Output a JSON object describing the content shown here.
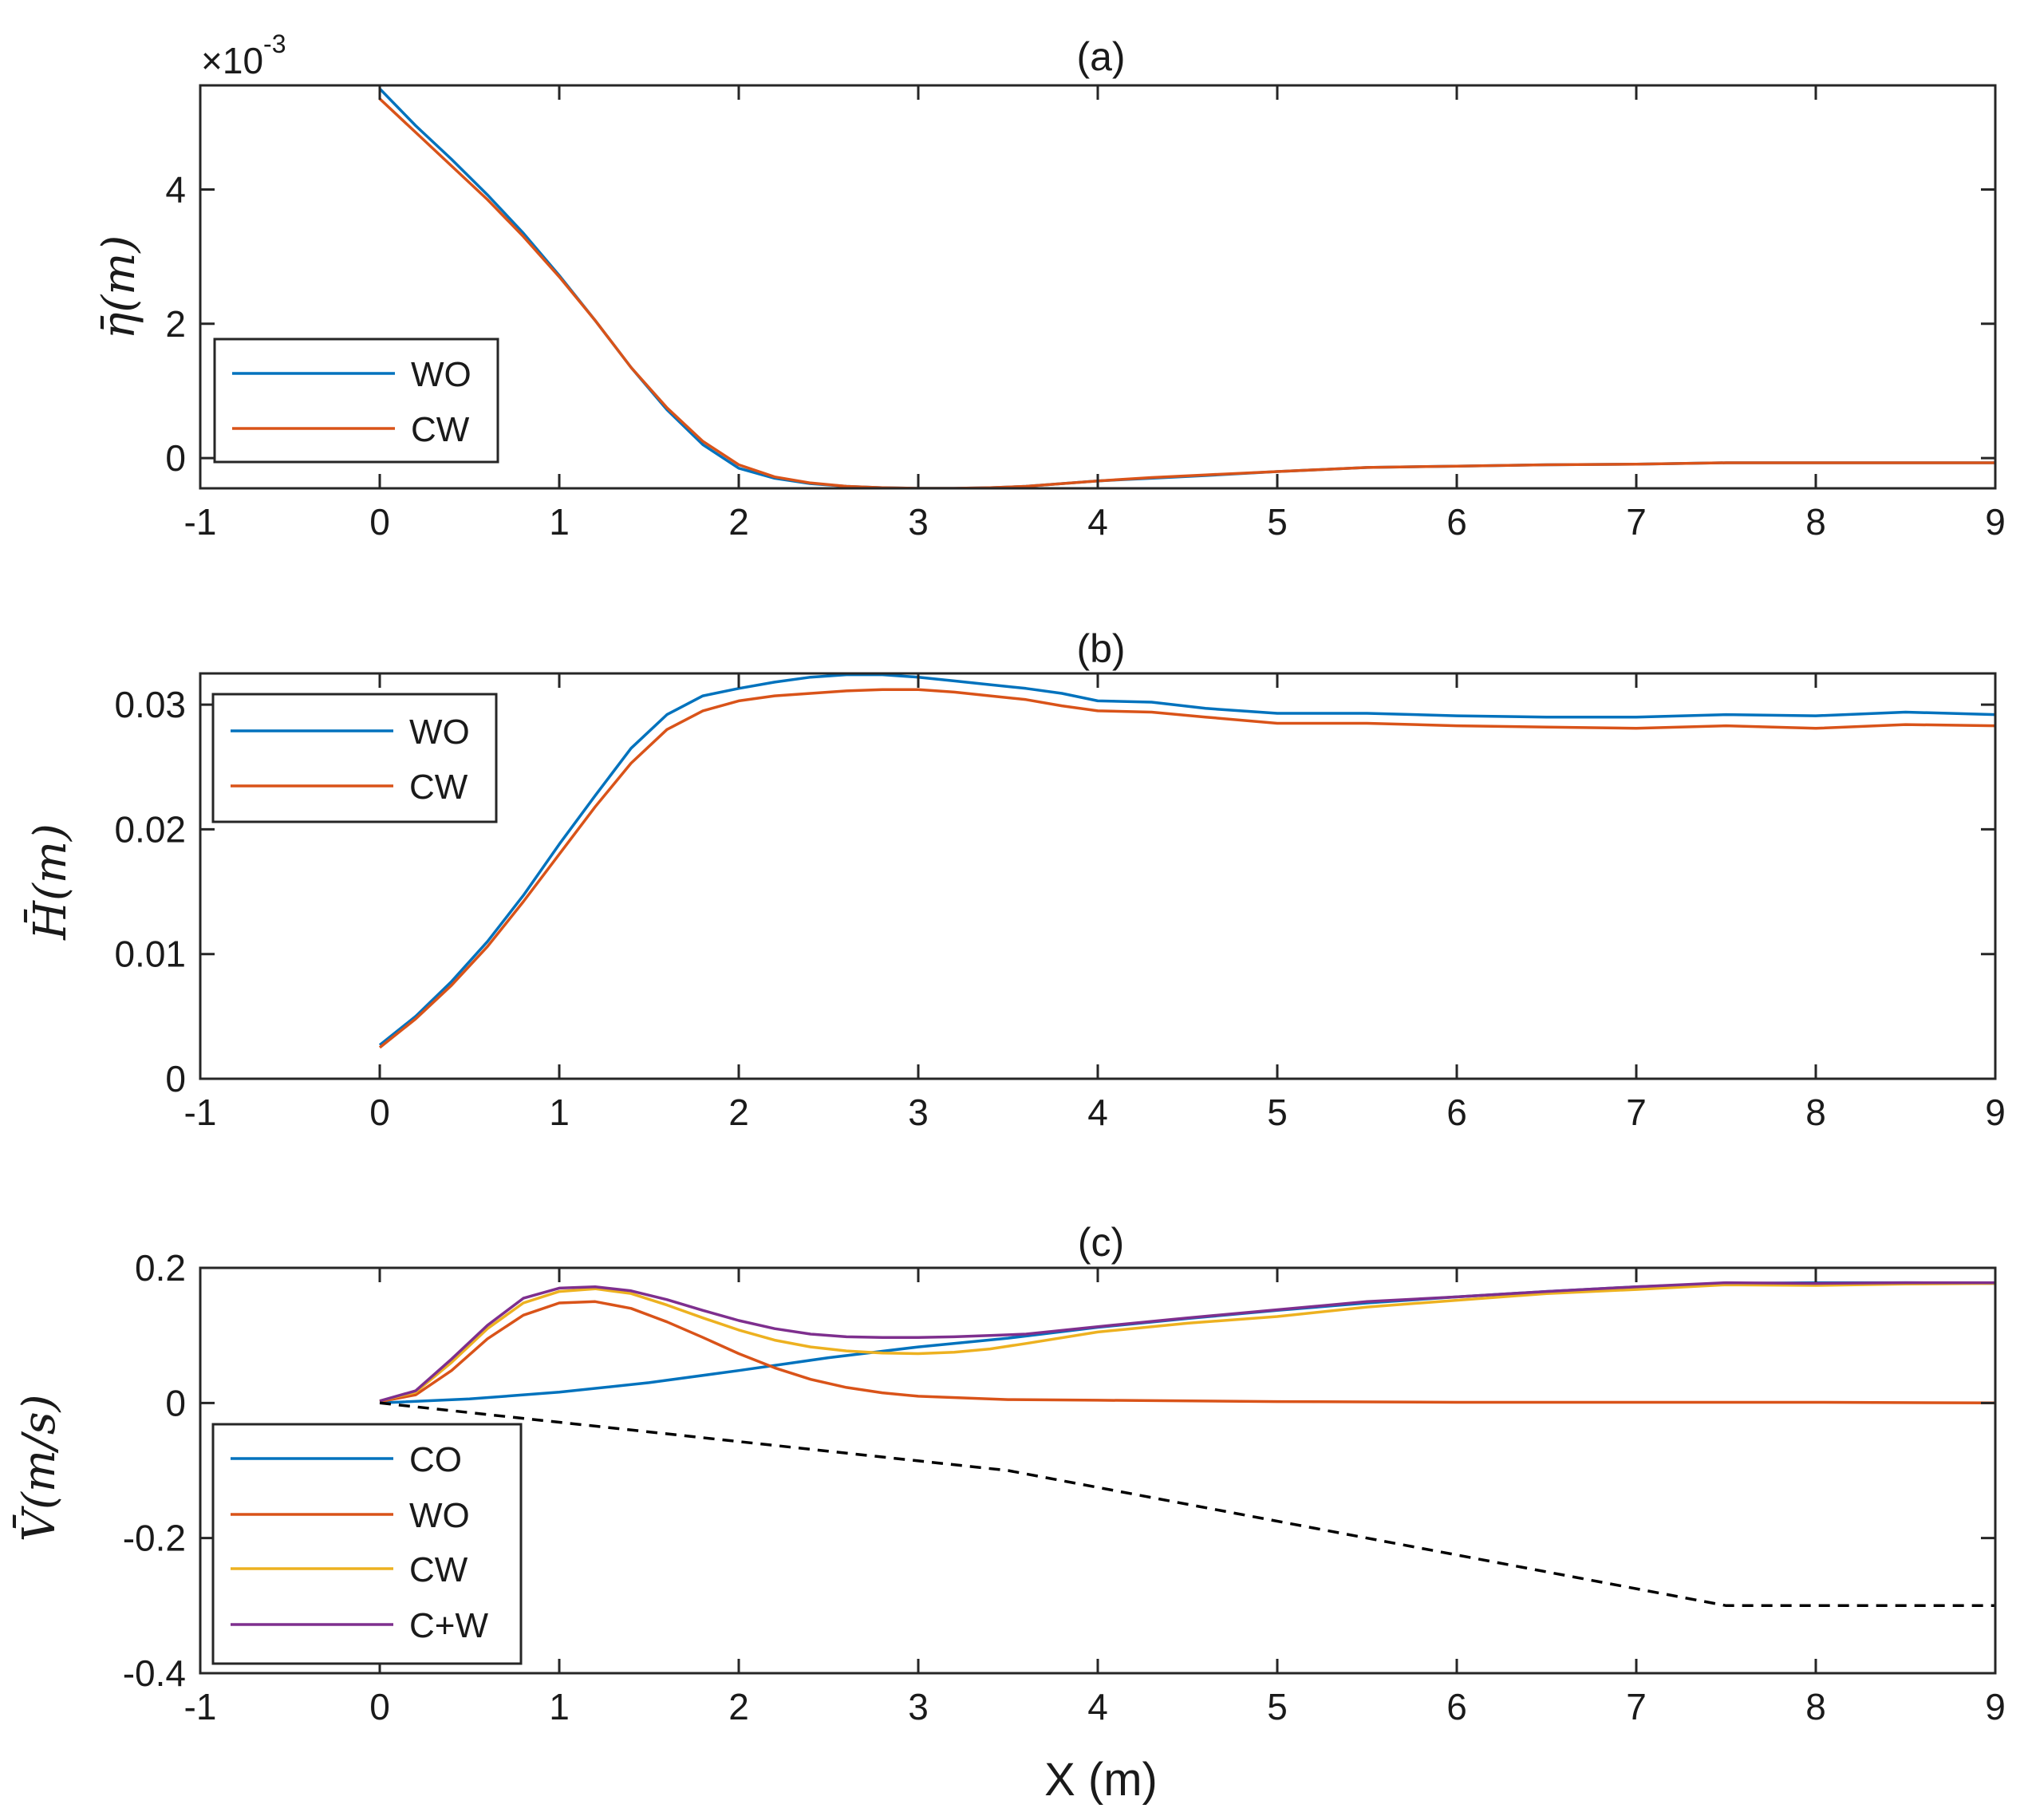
{
  "chart_data": [
    {
      "type": "line",
      "title": "(a)",
      "xlabel": "",
      "ylabel": "η̄(m)",
      "multiplier": "×10",
      "multiplier_exp": "-3",
      "xlim": [
        -1,
        9
      ],
      "ylim": [
        -0.45,
        5.55
      ],
      "xticks": [
        "-1",
        "0",
        "1",
        "2",
        "3",
        "4",
        "5",
        "6",
        "7",
        "8",
        "9"
      ],
      "yticks": [
        {
          "v": 0,
          "label": "0"
        },
        {
          "v": 2,
          "label": "2"
        },
        {
          "v": 4,
          "label": "4"
        }
      ],
      "legend": "top-left",
      "series": [
        {
          "name": "WO",
          "color": "#0072BD",
          "dash": "",
          "x": [
            0,
            0.2,
            0.4,
            0.6,
            0.8,
            1.0,
            1.2,
            1.4,
            1.6,
            1.8,
            2.0,
            2.2,
            2.4,
            2.6,
            2.8,
            3.0,
            3.2,
            3.4,
            3.6,
            3.8,
            4.0,
            4.3,
            4.6,
            5.0,
            5.5,
            6.0,
            6.5,
            7.0,
            7.5,
            8.0,
            8.5,
            9.0
          ],
          "y": [
            5.5,
            4.95,
            4.45,
            3.92,
            3.35,
            2.72,
            2.05,
            1.35,
            0.72,
            0.2,
            -0.15,
            -0.3,
            -0.38,
            -0.42,
            -0.44,
            -0.45,
            -0.45,
            -0.44,
            -0.42,
            -0.38,
            -0.34,
            -0.3,
            -0.26,
            -0.2,
            -0.14,
            -0.12,
            -0.1,
            -0.09,
            -0.07,
            -0.07,
            -0.07,
            -0.07
          ]
        },
        {
          "name": "CW",
          "color": "#D95319",
          "dash": "",
          "x": [
            0,
            0.2,
            0.4,
            0.6,
            0.8,
            1.0,
            1.2,
            1.4,
            1.6,
            1.8,
            2.0,
            2.2,
            2.4,
            2.6,
            2.8,
            3.0,
            3.2,
            3.4,
            3.6,
            3.8,
            4.0,
            4.3,
            4.6,
            5.0,
            5.5,
            6.0,
            6.5,
            7.0,
            7.5,
            8.0,
            8.5,
            9.0
          ],
          "y": [
            5.35,
            4.85,
            4.35,
            3.85,
            3.3,
            2.7,
            2.05,
            1.35,
            0.75,
            0.25,
            -0.1,
            -0.28,
            -0.37,
            -0.42,
            -0.44,
            -0.45,
            -0.45,
            -0.44,
            -0.42,
            -0.38,
            -0.34,
            -0.29,
            -0.25,
            -0.2,
            -0.14,
            -0.12,
            -0.1,
            -0.09,
            -0.07,
            -0.07,
            -0.07,
            -0.07
          ]
        }
      ]
    },
    {
      "type": "line",
      "title": "(b)",
      "xlabel": "",
      "ylabel": "H̄(m)",
      "xlim": [
        -1,
        9
      ],
      "ylim": [
        0,
        0.0325
      ],
      "xticks": [
        "-1",
        "0",
        "1",
        "2",
        "3",
        "4",
        "5",
        "6",
        "7",
        "8",
        "9"
      ],
      "yticks": [
        {
          "v": 0,
          "label": "0"
        },
        {
          "v": 0.01,
          "label": "0.01"
        },
        {
          "v": 0.02,
          "label": "0.02"
        },
        {
          "v": 0.03,
          "label": "0.03"
        }
      ],
      "legend": "top-left",
      "series": [
        {
          "name": "WO",
          "color": "#0072BD",
          "dash": "",
          "x": [
            0,
            0.2,
            0.4,
            0.6,
            0.8,
            1.0,
            1.2,
            1.4,
            1.6,
            1.8,
            2.0,
            2.2,
            2.4,
            2.6,
            2.8,
            3.0,
            3.2,
            3.4,
            3.6,
            3.8,
            4.0,
            4.3,
            4.6,
            5.0,
            5.5,
            6.0,
            6.5,
            7.0,
            7.5,
            8.0,
            8.5,
            9.0
          ],
          "y": [
            0.0027,
            0.005,
            0.0078,
            0.011,
            0.0147,
            0.0188,
            0.0227,
            0.0265,
            0.0292,
            0.0307,
            0.0313,
            0.0318,
            0.0322,
            0.0324,
            0.0324,
            0.0322,
            0.0319,
            0.0316,
            0.0313,
            0.0309,
            0.0303,
            0.0302,
            0.0297,
            0.0293,
            0.0293,
            0.0291,
            0.029,
            0.029,
            0.0292,
            0.0291,
            0.0294,
            0.0292
          ]
        },
        {
          "name": "CW",
          "color": "#D95319",
          "dash": "",
          "x": [
            0,
            0.2,
            0.4,
            0.6,
            0.8,
            1.0,
            1.2,
            1.4,
            1.6,
            1.8,
            2.0,
            2.2,
            2.4,
            2.6,
            2.8,
            3.0,
            3.2,
            3.4,
            3.6,
            3.8,
            4.0,
            4.3,
            4.6,
            5.0,
            5.5,
            6.0,
            6.5,
            7.0,
            7.5,
            8.0,
            8.5,
            9.0
          ],
          "y": [
            0.0025,
            0.0048,
            0.0075,
            0.0106,
            0.0142,
            0.018,
            0.0218,
            0.0253,
            0.028,
            0.0295,
            0.0303,
            0.0307,
            0.0309,
            0.0311,
            0.0312,
            0.0312,
            0.031,
            0.0307,
            0.0304,
            0.0299,
            0.0295,
            0.0294,
            0.029,
            0.0285,
            0.0285,
            0.0283,
            0.0282,
            0.0281,
            0.0283,
            0.0281,
            0.0284,
            0.0283
          ]
        }
      ]
    },
    {
      "type": "line",
      "title": "(c)",
      "xlabel": "X (m)",
      "ylabel": "V̄(m/s)",
      "xlim": [
        -1,
        9
      ],
      "ylim": [
        -0.4,
        0.2
      ],
      "xticks": [
        "-1",
        "0",
        "1",
        "2",
        "3",
        "4",
        "5",
        "6",
        "7",
        "8",
        "9"
      ],
      "yticks": [
        {
          "v": -0.4,
          "label": "-0.4"
        },
        {
          "v": -0.2,
          "label": "-0.2"
        },
        {
          "v": 0,
          "label": "0"
        },
        {
          "v": 0.2,
          "label": "0.2"
        }
      ],
      "legend": "bottom-left",
      "series": [
        {
          "name": "CO",
          "color": "#0072BD",
          "dash": "",
          "x": [
            0,
            0.5,
            1.0,
            1.5,
            2.0,
            2.5,
            3.0,
            3.5,
            4.0,
            4.5,
            5.0,
            5.5,
            6.0,
            6.5,
            7.0,
            7.5,
            8.0,
            8.5,
            9.0
          ],
          "y": [
            0,
            0.006,
            0.016,
            0.03,
            0.048,
            0.067,
            0.083,
            0.096,
            0.112,
            0.125,
            0.137,
            0.148,
            0.157,
            0.165,
            0.172,
            0.177,
            0.178,
            0.178,
            0.177
          ]
        },
        {
          "name": "WO",
          "color": "#D95319",
          "dash": "",
          "x": [
            0,
            0.2,
            0.4,
            0.6,
            0.8,
            1.0,
            1.2,
            1.4,
            1.6,
            1.8,
            2.0,
            2.2,
            2.4,
            2.6,
            2.8,
            3.0,
            3.5,
            4.0,
            5.0,
            6.0,
            7.0,
            8.0,
            9.0
          ],
          "y": [
            0.002,
            0.012,
            0.048,
            0.095,
            0.13,
            0.148,
            0.15,
            0.14,
            0.12,
            0.097,
            0.073,
            0.052,
            0.035,
            0.023,
            0.015,
            0.01,
            0.005,
            0.004,
            0.002,
            0.001,
            0.001,
            0.001,
            0.0
          ]
        },
        {
          "name": "CW",
          "color": "#EDB120",
          "dash": "",
          "x": [
            0,
            0.2,
            0.4,
            0.6,
            0.8,
            1.0,
            1.2,
            1.4,
            1.6,
            1.8,
            2.0,
            2.2,
            2.4,
            2.6,
            2.8,
            3.0,
            3.2,
            3.4,
            3.6,
            4.0,
            4.5,
            5.0,
            5.5,
            6.0,
            6.5,
            7.0,
            7.5,
            8.0,
            8.5,
            9.0
          ],
          "y": [
            0.003,
            0.016,
            0.06,
            0.11,
            0.148,
            0.165,
            0.169,
            0.162,
            0.145,
            0.126,
            0.108,
            0.093,
            0.083,
            0.077,
            0.074,
            0.073,
            0.075,
            0.08,
            0.088,
            0.105,
            0.118,
            0.128,
            0.142,
            0.152,
            0.162,
            0.168,
            0.175,
            0.174,
            0.176,
            0.177
          ]
        },
        {
          "name": "C+W",
          "color": "#7E2F8E",
          "dash": "",
          "x": [
            0,
            0.2,
            0.4,
            0.6,
            0.8,
            1.0,
            1.2,
            1.4,
            1.6,
            1.8,
            2.0,
            2.2,
            2.4,
            2.6,
            2.8,
            3.0,
            3.2,
            3.4,
            3.6,
            4.0,
            4.5,
            5.0,
            5.5,
            6.0,
            6.5,
            7.0,
            7.5,
            8.0,
            8.5,
            9.0
          ],
          "y": [
            0.003,
            0.018,
            0.065,
            0.115,
            0.155,
            0.17,
            0.172,
            0.166,
            0.153,
            0.137,
            0.122,
            0.11,
            0.102,
            0.098,
            0.097,
            0.097,
            0.098,
            0.1,
            0.102,
            0.113,
            0.126,
            0.138,
            0.15,
            0.157,
            0.165,
            0.172,
            0.178,
            0.177,
            0.178,
            0.178
          ]
        },
        {
          "name": "",
          "color": "#000000",
          "dash": "14 10",
          "x": [
            0,
            3.5,
            7.5,
            9.0
          ],
          "y": [
            0,
            -0.1,
            -0.3,
            -0.3
          ]
        }
      ]
    }
  ]
}
